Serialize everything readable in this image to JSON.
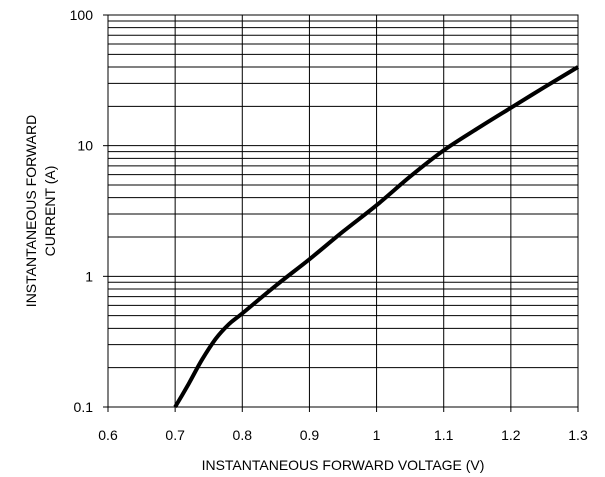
{
  "chart_data": {
    "type": "line",
    "title": "",
    "xlabel": "INSTANTANEOUS FORWARD VOLTAGE (V)",
    "ylabel_lines": [
      "INSTANTANEOUS FORWARD",
      "CURRENT (A)"
    ],
    "xlim": [
      0.6,
      1.3
    ],
    "ylim": [
      0.1,
      100
    ],
    "yscale": "log",
    "grid": true,
    "xticks": [
      0.6,
      0.7,
      0.8,
      0.9,
      1.0,
      1.1,
      1.2,
      1.3
    ],
    "xtick_labels": [
      "0.6",
      "0.7",
      "0.8",
      "0.9",
      "1",
      "1.1",
      "1.2",
      "1.3"
    ],
    "yticks": [
      0.1,
      1,
      10,
      100
    ],
    "ytick_labels": [
      "0.1",
      "1",
      "10",
      "100"
    ],
    "series": [
      {
        "x": [
          0.7,
          0.72,
          0.74,
          0.76,
          0.78,
          0.8,
          0.85,
          0.9,
          0.95,
          1.0,
          1.05,
          1.1,
          1.15,
          1.2,
          1.25,
          1.3
        ],
        "y": [
          0.1,
          0.15,
          0.23,
          0.33,
          0.43,
          0.52,
          0.85,
          1.35,
          2.2,
          3.5,
          5.8,
          9.2,
          13.5,
          19.5,
          28,
          40
        ]
      }
    ]
  }
}
